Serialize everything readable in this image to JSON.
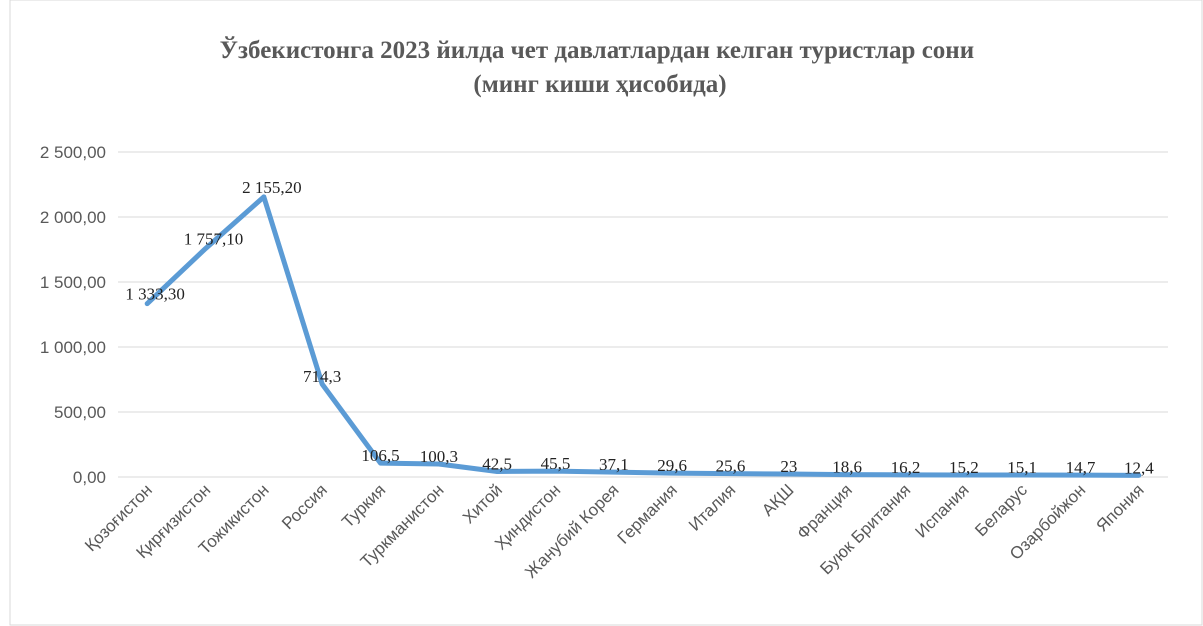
{
  "chart_data": {
    "type": "line",
    "title": "Ўзбекистонга 2023 йилда чет давлатлардан келган туристлар сони (минг киши ҳисобида)",
    "categories": [
      "Қозоғистон",
      "Қирғизистон",
      "Тожикистон",
      "Россия",
      "Туркия",
      "Туркманистон",
      "Хитой",
      "Ҳиндистон",
      "Жанубий Корея",
      "Германия",
      "Италия",
      "АҚШ",
      "Франция",
      "Буюк Британия",
      "Испания",
      "Беларус",
      "Озарбойжон",
      "Япония"
    ],
    "series": [
      {
        "name": "Туристлар",
        "color": "#5b9bd5",
        "values": [
          1333.3,
          1757.1,
          2155.2,
          714.3,
          106.5,
          100.3,
          42.5,
          45.5,
          37.1,
          29.6,
          25.6,
          23,
          18.6,
          16.2,
          15.2,
          15.1,
          14.7,
          12.4
        ],
        "value_labels": [
          "1 333,30",
          "1 757,10",
          "2 155,20",
          "714,3",
          "106,5",
          "100,3",
          "42,5",
          "45,5",
          "37,1",
          "29,6",
          "25,6",
          "23",
          "18,6",
          "16,2",
          "15,2",
          "15,1",
          "14,7",
          "12,4"
        ]
      }
    ],
    "ylim": [
      0,
      2500
    ],
    "yticks": [
      {
        "value": 0,
        "label": "0,00"
      },
      {
        "value": 500,
        "label": "500,00"
      },
      {
        "value": 1000,
        "label": "1 000,00"
      },
      {
        "value": 1500,
        "label": "1 500,00"
      },
      {
        "value": 2000,
        "label": "2 000,00"
      },
      {
        "value": 2500,
        "label": "2 500,00"
      }
    ],
    "grid": true
  }
}
